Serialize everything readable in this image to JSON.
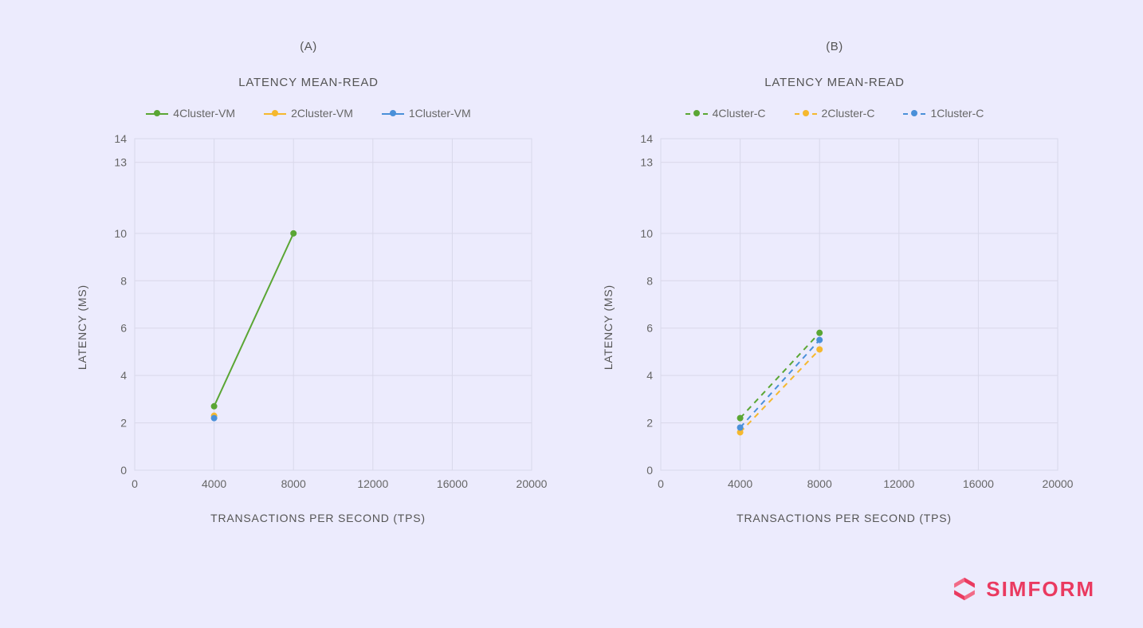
{
  "background_color": "#ecebfd",
  "grid_color": "#d9d8ea",
  "tick_font_color": "#666666",
  "label_font_color": "#555555",
  "panel_label_fontsize": 15,
  "title_fontsize": 15,
  "axis_label_fontsize": 14,
  "tick_fontsize": 14,
  "legend_fontsize": 14,
  "chartA": {
    "panel_label": "(A)",
    "title": "LATENCY MEAN-READ",
    "x_label": "TRANSACTIONS PER SECOND (TPS)",
    "y_label": "LATENCY (MS)",
    "xlim": [
      0,
      20000
    ],
    "ylim": [
      0,
      14
    ],
    "xticks": [
      0,
      4000,
      8000,
      12000,
      16000,
      20000
    ],
    "yticks": [
      0,
      2,
      4,
      6,
      8,
      10,
      13,
      14
    ],
    "line_style": "solid",
    "line_width": 2,
    "marker_radius": 4,
    "series": [
      {
        "name": "4Cluster-VM",
        "color": "#5aa634",
        "x": [
          4000,
          8000
        ],
        "y": [
          2.7,
          10.0
        ]
      },
      {
        "name": "2Cluster-VM",
        "color": "#f5b82e",
        "x": [
          4000
        ],
        "y": [
          2.3
        ]
      },
      {
        "name": "1Cluster-VM",
        "color": "#4a90d9",
        "x": [
          4000
        ],
        "y": [
          2.2
        ]
      }
    ]
  },
  "chartB": {
    "panel_label": "(B)",
    "title": "LATENCY MEAN-READ",
    "x_label": "TRANSACTIONS PER SECOND (TPS)",
    "y_label": "LATENCY (MS)",
    "xlim": [
      0,
      20000
    ],
    "ylim": [
      0,
      14
    ],
    "xticks": [
      0,
      4000,
      8000,
      12000,
      16000,
      20000
    ],
    "yticks": [
      0,
      2,
      4,
      6,
      8,
      10,
      13,
      14
    ],
    "line_style": "dashed",
    "line_width": 2,
    "marker_radius": 4,
    "series": [
      {
        "name": "4Cluster-C",
        "color": "#5aa634",
        "x": [
          4000,
          8000
        ],
        "y": [
          2.2,
          5.8
        ]
      },
      {
        "name": "2Cluster-C",
        "color": "#f5b82e",
        "x": [
          4000,
          8000
        ],
        "y": [
          1.6,
          5.1
        ]
      },
      {
        "name": "1Cluster-C",
        "color": "#4a90d9",
        "x": [
          4000,
          8000
        ],
        "y": [
          1.8,
          5.5
        ]
      }
    ]
  },
  "logo": {
    "text": "SIMFORM",
    "color": "#ea3a60"
  }
}
